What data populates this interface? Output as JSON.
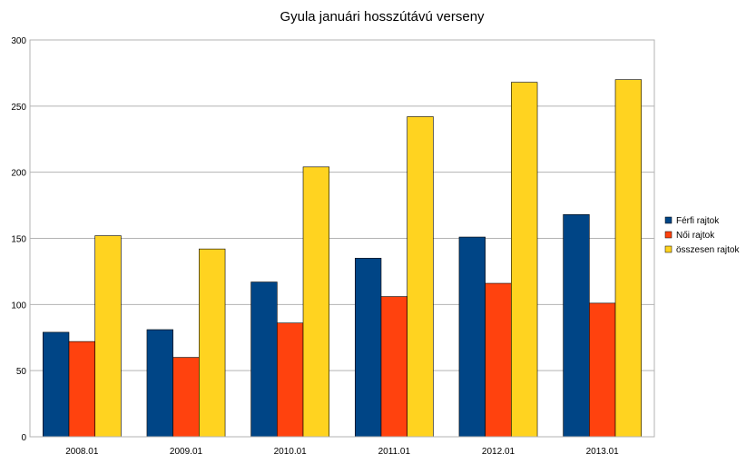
{
  "chart_data": {
    "type": "bar",
    "title": "Gyula januári hosszútávú  verseny",
    "xlabel": "",
    "ylabel": "",
    "categories": [
      "2008.01",
      "2009.01",
      "2010.01",
      "2011.01",
      "2012.01",
      "2013.01"
    ],
    "series": [
      {
        "name": "Férfi rajtok",
        "color": "#004586",
        "values": [
          79,
          81,
          117,
          135,
          151,
          168
        ]
      },
      {
        "name": "Női rajtok",
        "color": "#ff420e",
        "values": [
          72,
          60,
          86,
          106,
          116,
          101
        ]
      },
      {
        "name": "összesen rajtok",
        "color": "#ffd320",
        "values": [
          152,
          142,
          204,
          242,
          268,
          270
        ]
      }
    ],
    "ylim": [
      0,
      300
    ],
    "yticks": [
      0,
      50,
      100,
      150,
      200,
      250,
      300
    ],
    "grid": true,
    "legend_position": "right"
  }
}
